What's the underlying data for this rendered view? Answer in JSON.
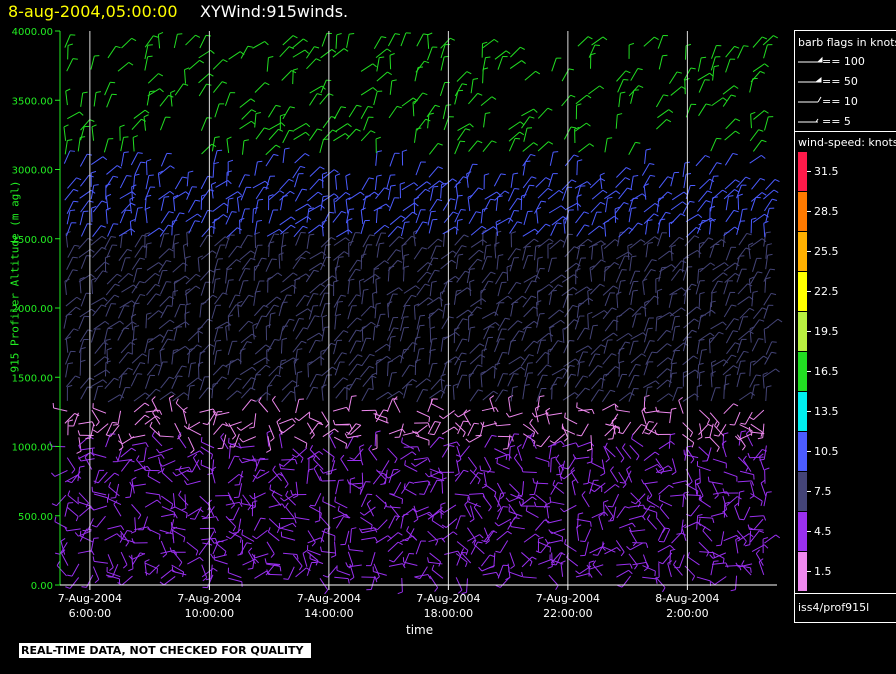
{
  "header": {
    "timestamp": "8-aug-2004,05:00:00",
    "product": "XYWind:915winds."
  },
  "disclaimer": "REAL-TIME DATA, NOT CHECKED FOR QUALITY",
  "legend": {
    "barb_title": "barb flags in knots",
    "barb_flags": [
      "== 100",
      "== 50",
      "== 10",
      "== 5"
    ],
    "colorbar_title": "wind-speed: knots",
    "station": "iss4/prof915l"
  },
  "colors": {
    "ylabel": "#22ee22",
    "yticks": "#22ee22",
    "axes": "#22ee22",
    "title_time": "#ffff00"
  },
  "chart_data": {
    "type": "scatter",
    "title": "XYWind:915winds.",
    "xlabel": "time",
    "ylabel": "915 Profiler Altitude (m agl)",
    "ylim": [
      0,
      4000
    ],
    "y_ticks": [
      "0.00",
      "500.00",
      "1000.00",
      "1500.00",
      "2000.00",
      "2500.00",
      "3000.00",
      "3500.00",
      "4000.00"
    ],
    "x_ticks": [
      {
        "date": "7-Aug-2004",
        "time": "6:00:00",
        "hour": 6
      },
      {
        "date": "7-Aug-2004",
        "time": "10:00:00",
        "hour": 10
      },
      {
        "date": "7-Aug-2004",
        "time": "14:00:00",
        "hour": 14
      },
      {
        "date": "7-Aug-2004",
        "time": "18:00:00",
        "hour": 18
      },
      {
        "date": "7-Aug-2004",
        "time": "22:00:00",
        "hour": 22
      },
      {
        "date": "8-Aug-2004",
        "time": "2:00:00",
        "hour": 26
      }
    ],
    "xlim_hours": [
      5.0,
      29.0
    ],
    "grid": "vertical lines at x ticks",
    "colorbar": [
      {
        "label": "31.5",
        "color": "#ff1a4a"
      },
      {
        "label": "28.5",
        "color": "#ff7a00"
      },
      {
        "label": "25.5",
        "color": "#ffb000"
      },
      {
        "label": "22.5",
        "color": "#ffff00"
      },
      {
        "label": "19.5",
        "color": "#b8f040"
      },
      {
        "label": "16.5",
        "color": "#22dd22"
      },
      {
        "label": "13.5",
        "color": "#00f0f0"
      },
      {
        "label": "10.5",
        "color": "#4c5cff"
      },
      {
        "label": "7.5",
        "color": "#444477"
      },
      {
        "label": "4.5",
        "color": "#9a30f0"
      },
      {
        "label": "1.5",
        "color": "#ee88ee"
      }
    ],
    "wind_regimes": [
      {
        "altitude_range_m": [
          0,
          1000
        ],
        "speed_knots": 4.5,
        "color": "#9a30f0"
      },
      {
        "altitude_range_m": [
          1000,
          1300
        ],
        "speed_knots": 1.5,
        "color": "#ee88ee"
      },
      {
        "altitude_range_m": [
          1300,
          2500
        ],
        "speed_knots": 7.5,
        "color": "#444477"
      },
      {
        "altitude_range_m": [
          2500,
          3100
        ],
        "speed_knots": 10.5,
        "color": "#4c5cff"
      },
      {
        "altitude_range_m": [
          3100,
          4000
        ],
        "speed_knots": 16.5,
        "color": "#22dd22"
      }
    ]
  }
}
